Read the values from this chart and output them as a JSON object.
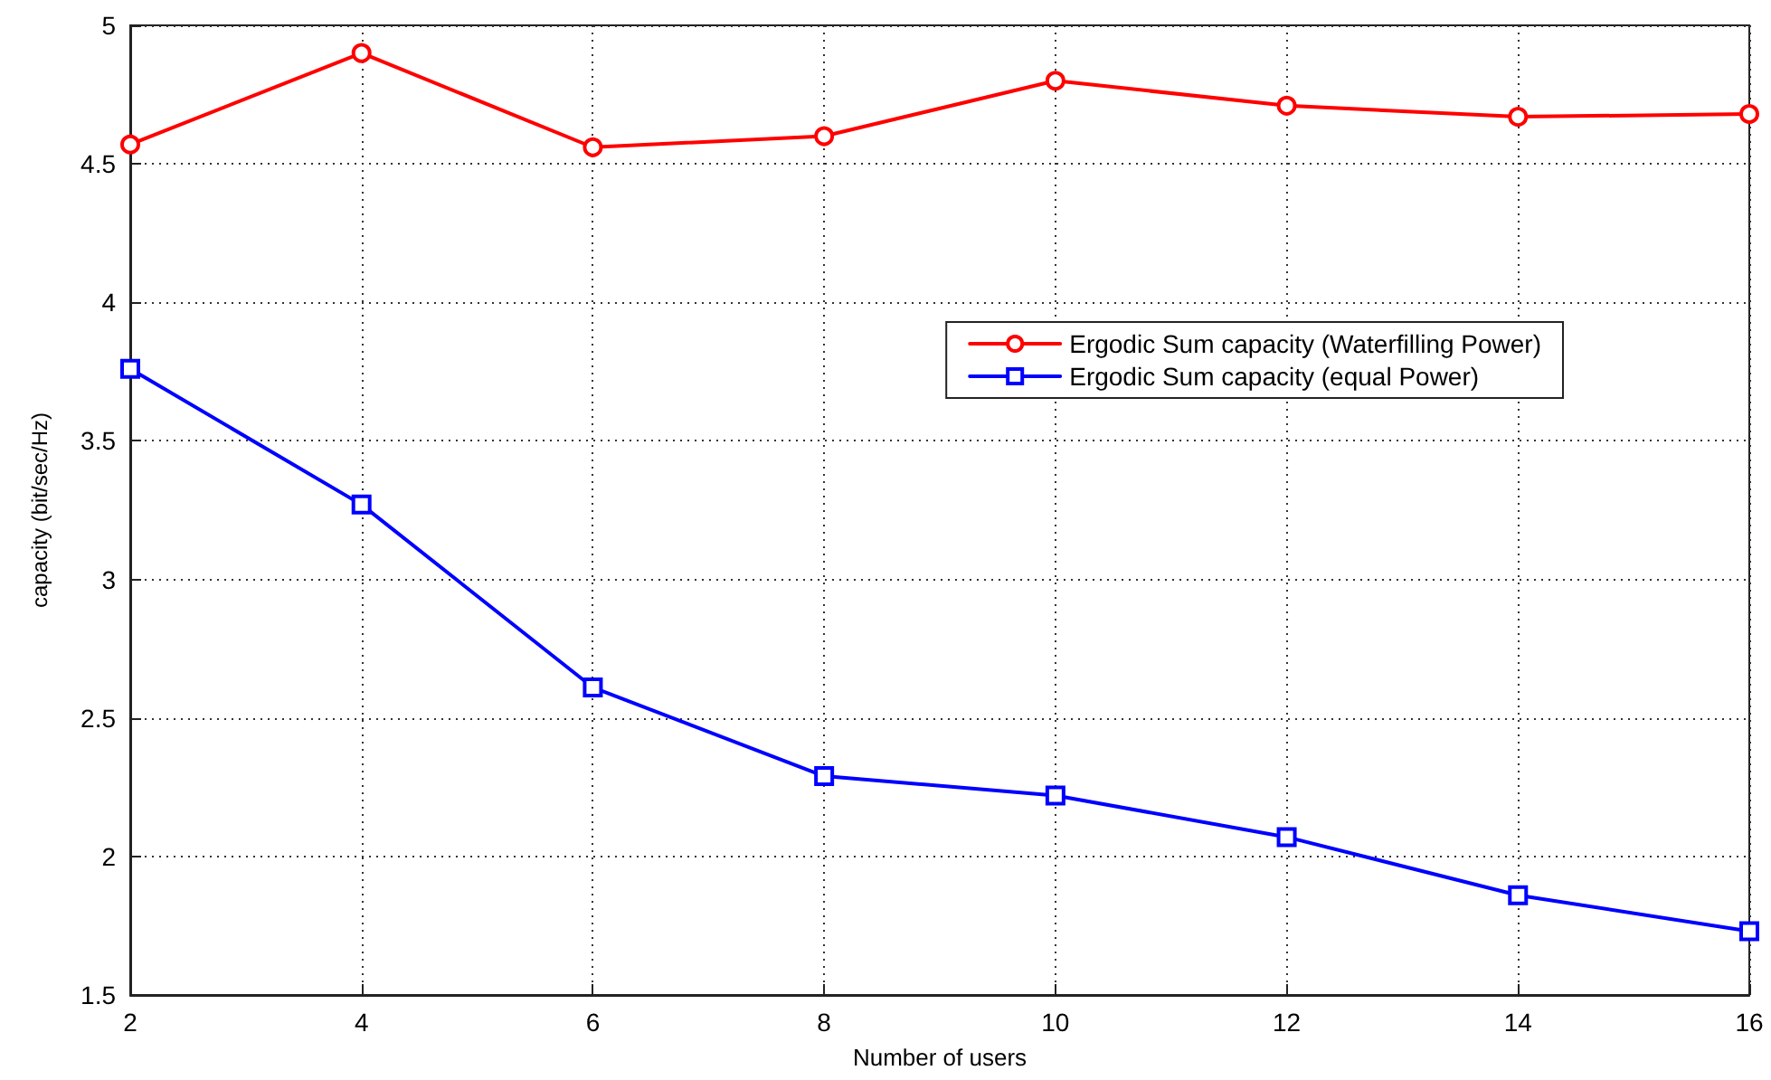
{
  "chart_data": {
    "type": "line",
    "xlabel": "Number of users",
    "ylabel": "capacity (bit/sec/Hz)",
    "x": [
      2,
      4,
      6,
      8,
      10,
      12,
      14,
      16
    ],
    "series": [
      {
        "name": "Ergodic Sum capacity (Waterfilling Power)",
        "color": "#ff0000",
        "marker": "circle",
        "values": [
          4.57,
          4.9,
          4.56,
          4.6,
          4.8,
          4.71,
          4.67,
          4.68
        ]
      },
      {
        "name": "Ergodic Sum capacity (equal Power)",
        "color": "#0000ff",
        "marker": "square",
        "values": [
          3.76,
          3.27,
          2.61,
          2.29,
          2.22,
          2.07,
          1.86,
          1.73
        ]
      }
    ],
    "xlim": [
      2,
      16
    ],
    "xticks": [
      2,
      4,
      6,
      8,
      10,
      12,
      14,
      16
    ],
    "ylim": [
      1.5,
      5
    ],
    "yticks": [
      1.5,
      2,
      2.5,
      3,
      3.5,
      4,
      4.5,
      5
    ],
    "grid": true,
    "legend": "right",
    "line_style": "solid"
  }
}
